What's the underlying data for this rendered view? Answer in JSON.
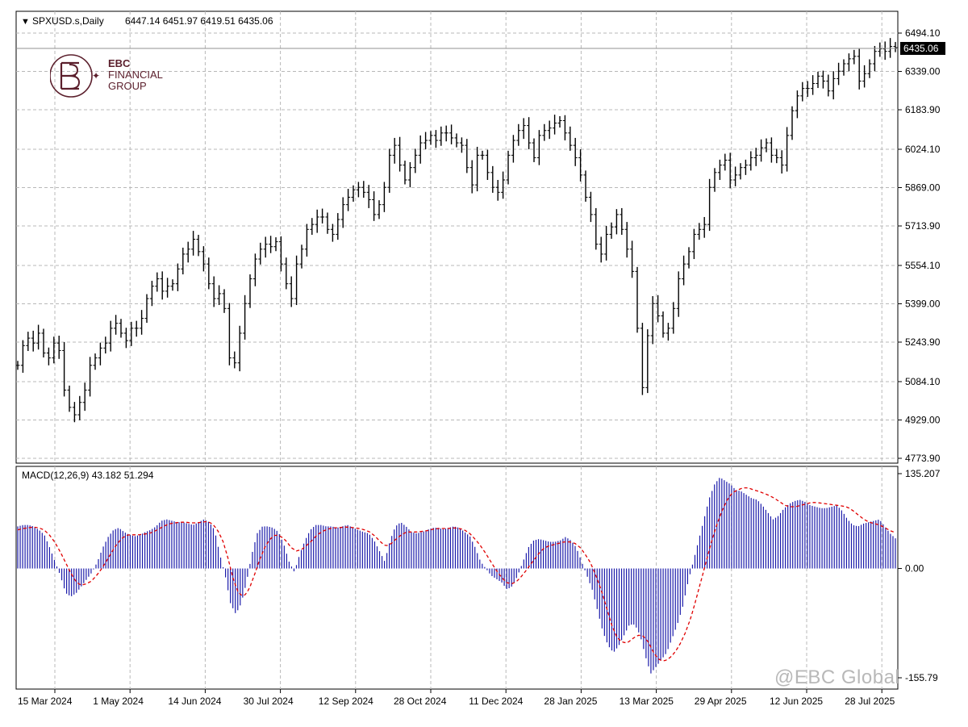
{
  "header": {
    "symbol": "SPXUSD.s,Daily",
    "ohlc": "6447.14 6451.97 6419.51 6435.06",
    "current_price_label": "6435.06"
  },
  "logo": {
    "line1": "EBC",
    "line2": "FINANCIAL",
    "line3": "GROUP"
  },
  "watermark": "@EBC Global",
  "chart_data": [
    {
      "type": "bar",
      "subtype": "ohlc",
      "series": [
        {
          "name": "SPXUSD.s,Daily"
        }
      ],
      "y_ticks": [
        "6494.10",
        "6339.00",
        "6183.90",
        "6024.10",
        "5869.00",
        "5713.90",
        "5554.10",
        "5399.00",
        "5243.90",
        "5084.10",
        "4929.00",
        "4773.90"
      ],
      "ylim": [
        4773.9,
        6494.1
      ],
      "x_ticks": [
        "15 Mar 2024",
        "1 May 2024",
        "14 Jun 2024",
        "30 Jul 2024",
        "12 Sep 2024",
        "28 Oct 2024",
        "11 Dec 2024",
        "28 Jan 2025",
        "13 Mar 2025",
        "29 Apr 2025",
        "12 Jun 2025",
        "28 Jul 2025"
      ],
      "last_price": 6435.06,
      "grid": true,
      "closes_approx": [
        5150,
        5230,
        5260,
        5240,
        5280,
        5200,
        5180,
        5240,
        5210,
        5050,
        4980,
        4950,
        5000,
        5050,
        5150,
        5180,
        5220,
        5240,
        5300,
        5320,
        5280,
        5250,
        5300,
        5300,
        5340,
        5420,
        5470,
        5500,
        5450,
        5470,
        5480,
        5540,
        5600,
        5620,
        5660,
        5610,
        5560,
        5480,
        5420,
        5440,
        5380,
        5180,
        5160,
        5280,
        5400,
        5500,
        5580,
        5620,
        5640,
        5630,
        5650,
        5560,
        5480,
        5420,
        5560,
        5620,
        5700,
        5720,
        5750,
        5750,
        5700,
        5680,
        5740,
        5800,
        5830,
        5860,
        5870,
        5850,
        5820,
        5760,
        5800,
        5870,
        6000,
        6040,
        5960,
        5900,
        5950,
        6000,
        6050,
        6060,
        6080,
        6060,
        6090,
        6090,
        6070,
        6050,
        6040,
        5950,
        5880,
        6000,
        6000,
        5930,
        5870,
        5850,
        5900,
        6000,
        6060,
        6100,
        6120,
        6050,
        5990,
        6080,
        6100,
        6110,
        6130,
        6140,
        6090,
        6040,
        5990,
        5920,
        5830,
        5760,
        5640,
        5600,
        5680,
        5710,
        5760,
        5700,
        5620,
        5530,
        5300,
        5060,
        5270,
        5400,
        5350,
        5280,
        5300,
        5380,
        5500,
        5560,
        5610,
        5680,
        5700,
        5720,
        5870,
        5930,
        5960,
        5980,
        5900,
        5920,
        5950,
        5960,
        5990,
        6000,
        6030,
        6050,
        6000,
        5990,
        5960,
        6080,
        6180,
        6240,
        6270,
        6270,
        6290,
        6320,
        6300,
        6260,
        6310,
        6340,
        6370,
        6390,
        6400,
        6300,
        6330,
        6370,
        6420,
        6430,
        6420,
        6440,
        6435
      ]
    },
    {
      "type": "bar",
      "title": "MACD(12,26,9) 43.182 51.294",
      "series": [
        {
          "name": "MACD",
          "last": 43.182
        },
        {
          "name": "Signal",
          "last": 51.294
        }
      ],
      "y_ticks": [
        "135.207",
        "0.00",
        "-155.79"
      ],
      "ylim": [
        -155.79,
        135.207
      ],
      "macd_values_approx": [
        60,
        62,
        62,
        60,
        55,
        48,
        30,
        10,
        -10,
        -35,
        -40,
        -35,
        -25,
        -15,
        -5,
        10,
        30,
        45,
        55,
        58,
        52,
        48,
        46,
        48,
        52,
        55,
        60,
        68,
        70,
        68,
        66,
        66,
        64,
        62,
        66,
        70,
        66,
        55,
        20,
        -10,
        -50,
        -65,
        -50,
        -20,
        20,
        50,
        60,
        60,
        58,
        52,
        35,
        10,
        -5,
        20,
        40,
        55,
        62,
        62,
        60,
        60,
        58,
        60,
        62,
        58,
        55,
        52,
        50,
        40,
        25,
        10,
        40,
        60,
        66,
        60,
        52,
        50,
        52,
        55,
        58,
        58,
        56,
        58,
        60,
        58,
        52,
        46,
        30,
        10,
        0,
        -10,
        -15,
        -20,
        -30,
        -25,
        -10,
        10,
        30,
        40,
        42,
        40,
        38,
        38,
        40,
        45,
        40,
        30,
        10,
        -10,
        -30,
        -60,
        -90,
        -110,
        -120,
        -110,
        -95,
        -80,
        -80,
        -95,
        -125,
        -150,
        -140,
        -130,
        -120,
        -100,
        -80,
        -55,
        -20,
        10,
        40,
        70,
        100,
        120,
        130,
        125,
        120,
        112,
        110,
        105,
        100,
        98,
        90,
        80,
        70,
        75,
        85,
        92,
        96,
        98,
        95,
        90,
        88,
        86,
        86,
        88,
        90,
        82,
        70,
        62,
        60,
        64,
        66,
        68,
        70,
        60,
        50,
        43
      ],
      "signal_values_approx": [
        55,
        57,
        58,
        59,
        58,
        55,
        48,
        38,
        25,
        10,
        -5,
        -18,
        -24,
        -22,
        -18,
        -10,
        0,
        12,
        25,
        36,
        44,
        48,
        48,
        48,
        49,
        50,
        53,
        57,
        61,
        64,
        65,
        66,
        66,
        65,
        65,
        66,
        67,
        64,
        55,
        40,
        15,
        -15,
        -35,
        -40,
        -30,
        -10,
        12,
        30,
        42,
        48,
        46,
        40,
        30,
        25,
        27,
        33,
        40,
        48,
        53,
        56,
        58,
        58,
        59,
        59,
        58,
        57,
        55,
        52,
        46,
        38,
        32,
        35,
        42,
        48,
        52,
        52,
        52,
        53,
        54,
        56,
        57,
        57,
        57,
        58,
        57,
        55,
        50,
        42,
        33,
        22,
        10,
        -2,
        -12,
        -20,
        -22,
        -18,
        -10,
        0,
        10,
        20,
        28,
        32,
        34,
        36,
        38,
        38,
        36,
        30,
        20,
        8,
        -10,
        -30,
        -55,
        -80,
        -98,
        -105,
        -106,
        -100,
        -95,
        -96,
        -105,
        -120,
        -130,
        -132,
        -128,
        -120,
        -108,
        -92,
        -72,
        -46,
        -18,
        10,
        38,
        62,
        82,
        98,
        108,
        112,
        115,
        115,
        112,
        110,
        107,
        104,
        100,
        95,
        90,
        88,
        88,
        90,
        92,
        94,
        94,
        93,
        92,
        91,
        90,
        89,
        87,
        82,
        76,
        70,
        66,
        64,
        62,
        58,
        54,
        51
      ]
    }
  ],
  "colors": {
    "price_bars": "#000000",
    "macd_histogram": "#1a1aaa",
    "signal_line": "#e00000",
    "grid": "#b0b0b0",
    "price_label_bg": "#000000",
    "logo": "#5b1f2c"
  }
}
